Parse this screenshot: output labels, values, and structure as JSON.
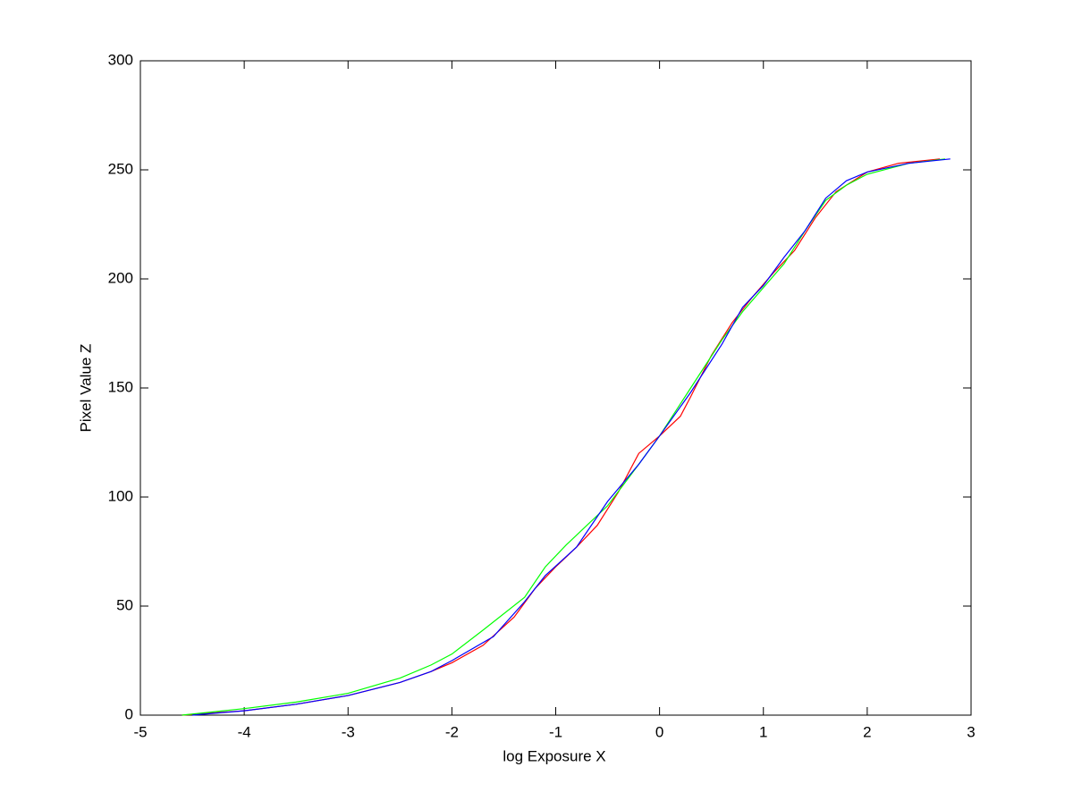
{
  "chart_data": {
    "type": "line",
    "xlabel": "log Exposure X",
    "ylabel": "Pixel Value Z",
    "xlim": [
      -5,
      3
    ],
    "ylim": [
      0,
      300
    ],
    "xticks": [
      -5,
      -4,
      -3,
      -2,
      -1,
      0,
      1,
      2,
      3
    ],
    "yticks": [
      0,
      50,
      100,
      150,
      200,
      250,
      300
    ],
    "grid": false,
    "series": [
      {
        "color": "#ff0000",
        "x": [
          -4.6,
          -4,
          -3.5,
          -3,
          -2.5,
          -2.2,
          -2,
          -1.7,
          -1.4,
          -1.2,
          -1.0,
          -0.8,
          -0.6,
          -0.4,
          -0.2,
          0,
          0.2,
          0.3,
          0.5,
          0.7,
          0.9,
          1.1,
          1.3,
          1.5,
          1.7,
          2,
          2.3,
          2.7
        ],
        "values": [
          0,
          2,
          5,
          9,
          15,
          20,
          24,
          32,
          45,
          58,
          68,
          77,
          87,
          102,
          120,
          128,
          137,
          146,
          165,
          180,
          192,
          203,
          213,
          228,
          240,
          249,
          253,
          255
        ]
      },
      {
        "color": "#00ff00",
        "x": [
          -4.6,
          -4,
          -3.5,
          -3,
          -2.5,
          -2.2,
          -2,
          -1.7,
          -1.3,
          -1.1,
          -0.9,
          -0.7,
          -0.5,
          -0.2,
          0,
          0.3,
          0.6,
          0.8,
          1,
          1.2,
          1.4,
          1.6,
          1.8,
          2,
          2.4,
          2.75
        ],
        "values": [
          0,
          3,
          6,
          10,
          17,
          23,
          28,
          39,
          54,
          68,
          78,
          87,
          96,
          115,
          128,
          150,
          172,
          185,
          196,
          207,
          222,
          236,
          243,
          248,
          253,
          255
        ]
      },
      {
        "color": "#0000ff",
        "x": [
          -4.5,
          -4,
          -3.5,
          -3,
          -2.5,
          -2.2,
          -2,
          -1.6,
          -1.3,
          -1.1,
          -0.8,
          -0.5,
          -0.2,
          0,
          0.3,
          0.6,
          0.8,
          1,
          1.2,
          1.4,
          1.6,
          1.8,
          2,
          2.4,
          2.8
        ],
        "values": [
          0,
          2,
          5,
          9,
          15,
          20,
          25,
          36,
          52,
          64,
          77,
          98,
          115,
          128,
          148,
          170,
          187,
          197,
          210,
          222,
          237,
          245,
          249,
          253,
          255
        ]
      }
    ]
  }
}
